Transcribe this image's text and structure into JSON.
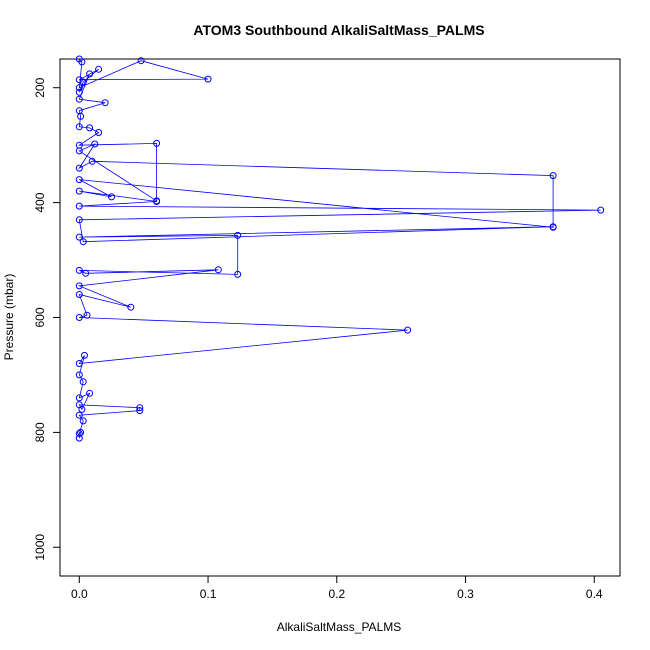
{
  "chart_data": {
    "type": "line",
    "title": "ATOM3 Southbound AlkaliSaltMass_PALMS",
    "xlabel": "AlkaliSaltMass_PALMS",
    "ylabel": "Pressure (mbar)",
    "xlim": [
      -0.015,
      0.42
    ],
    "ylim": [
      1050,
      150
    ],
    "y_reversed": true,
    "grid": false,
    "legend": "none",
    "x_ticks": [
      0.0,
      0.1,
      0.2,
      0.3,
      0.4
    ],
    "x_tick_labels": [
      "0.0",
      "0.1",
      "0.2",
      "0.3",
      "0.4"
    ],
    "y_ticks": [
      200,
      400,
      600,
      800,
      1000
    ],
    "y_tick_labels": [
      "200",
      "400",
      "600",
      "800",
      "1000"
    ],
    "series": [
      {
        "color": "#0000ff",
        "marker": "open-circle",
        "x": [
          0.0,
          0.002,
          0.0,
          0.048,
          0.1,
          0.0,
          0.015,
          0.003,
          0.0,
          0.008,
          0.0,
          0.02,
          0.0,
          0.001,
          0.0,
          0.008,
          0.015,
          0.0,
          0.06,
          0.06,
          0.0,
          0.012,
          0.0,
          0.01,
          0.368,
          0.368,
          0.0,
          0.025,
          0.0,
          0.06,
          0.0,
          0.405,
          0.0,
          0.003,
          0.368,
          0.0,
          0.123,
          0.123,
          0.0,
          0.005,
          0.108,
          0.0,
          0.04,
          0.0,
          0.006,
          0.0,
          0.255,
          0.0,
          0.004,
          0.0,
          0.003,
          0.0,
          0.008,
          0.002,
          0.0,
          0.047,
          0.047,
          0.0,
          0.003,
          0.0,
          0.001,
          0.0
        ],
        "y": [
          150,
          155,
          200,
          153,
          185,
          186,
          168,
          190,
          208,
          176,
          220,
          226,
          240,
          250,
          268,
          270,
          278,
          300,
          297,
          397,
          310,
          298,
          340,
          328,
          353,
          443,
          360,
          390,
          380,
          398,
          406,
          413,
          430,
          468,
          442,
          460,
          457,
          525,
          518,
          523,
          517,
          545,
          582,
          560,
          596,
          600,
          622,
          680,
          666,
          700,
          712,
          740,
          732,
          760,
          752,
          757,
          762,
          770,
          780,
          802,
          800,
          810
        ]
      }
    ]
  }
}
